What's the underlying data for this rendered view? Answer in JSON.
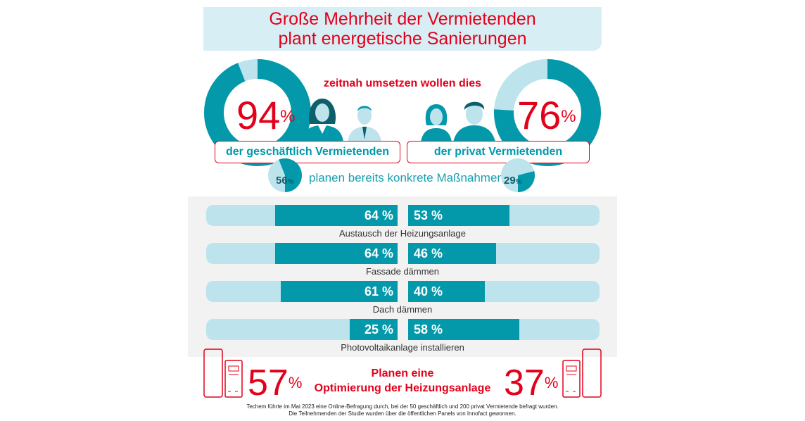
{
  "title": {
    "line1": "Große Mehrheit der Vermietenden",
    "line2": "plant energetische Sanierungen"
  },
  "headline": "zeitnah umsetzen wollen dies",
  "left_group": {
    "percent": "94",
    "percent_sign": "%",
    "value": 94,
    "label": "der geschäftlich Vermietenden",
    "concrete_percent": "56",
    "concrete_sign": "%",
    "concrete_value": 56
  },
  "right_group": {
    "percent": "76",
    "percent_sign": "%",
    "value": 76,
    "label": "der privat Vermietenden",
    "concrete_percent": "29",
    "concrete_sign": "%",
    "concrete_value": 29
  },
  "concrete_label": "planen bereits konkrete Maßnahmen",
  "chart_data": {
    "type": "bar",
    "orientation": "horizontal",
    "categories": [
      "Austausch der Heizungsanlage",
      "Fassade dämmen",
      "Dach dämmen",
      "Photovoltaikanlage installieren"
    ],
    "series": [
      {
        "values": [
          64,
          64,
          61,
          25
        ],
        "labels": [
          "64 %",
          "64 %",
          "61 %",
          "25 %"
        ]
      },
      {
        "values": [
          53,
          46,
          40,
          58
        ],
        "labels": [
          "53 %",
          "46 %",
          "40 %",
          "58 %"
        ]
      }
    ],
    "xlim": [
      0,
      100
    ]
  },
  "bottom": {
    "left_percent": "57",
    "left_value": 57,
    "right_percent": "37",
    "right_value": 37,
    "percent_sign": "%",
    "text_line1": "Planen eine",
    "text_line2": "Optimierung der Heizungsanlage"
  },
  "footnote": {
    "line1": "Techem führte im Mai 2023 eine Online-Befragung durch, bei der 50 geschäftlich und 200 privat Vermietende befragt wurden.",
    "line2": "Die Teilnehmenden der Studie wurden über die öffentlichen Panels von Innofact gewonnen."
  },
  "colors": {
    "red": "#e3001b",
    "teal": "#0399aa",
    "light_teal": "#bde3ec",
    "title_bg": "#d7eef5",
    "panel_bg": "#f2f2f2"
  }
}
